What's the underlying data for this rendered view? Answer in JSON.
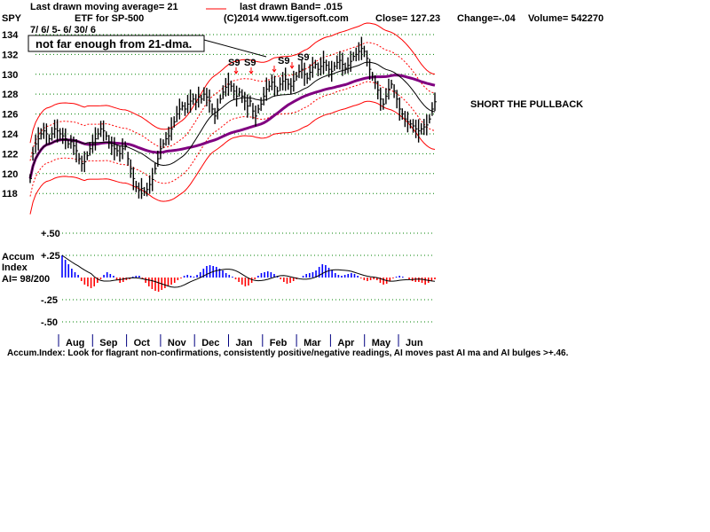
{
  "header": {
    "ticker": "SPY",
    "ma_label": "Last drawn moving average= 21",
    "band_label": "last drawn Band= .015",
    "subtitle": "ETF for SP-500",
    "copyright": "(C)2014 www.tigersoft.com",
    "close_label": "Close=  127.23",
    "change_label": "Change=-.04",
    "volume_label": "Volume=  542270",
    "date_range": "7/ 6/ 5-  6/ 30/ 6"
  },
  "annotations": {
    "callout": "not far enough from 21-dma.",
    "signal_1": "S9",
    "signal_2": "S9",
    "signal_3": "S9",
    "signal_4": "S9",
    "signal_5": "S9",
    "action": "SHORT THE PULLBACK"
  },
  "footer": {
    "text": "Accum.Index: Look for flagrant non-confirmations, consistently positive/negative readings, AI moves past AI ma and AI bulges >+.46."
  },
  "indicator": {
    "title_line1": "Accum",
    "title_line2": "Index",
    "ai_reading": "AI= 98/200"
  },
  "colors": {
    "price_bars": "#000000",
    "ma21": "#000000",
    "ma50": "#800080",
    "bands": "#ff0000",
    "grid": "#008000",
    "ai_positive": "#0000ff",
    "ai_negative": "#ff0000"
  },
  "chart_data": [
    {
      "type": "line",
      "title": "SPY",
      "y_ticks": [
        "134",
        "132",
        "130",
        "128",
        "126",
        "124",
        "122",
        "120",
        "118"
      ],
      "ylim": [
        116.5,
        134.8
      ],
      "grid": true,
      "months": [
        "Aug",
        "Sep",
        "Oct",
        "Nov",
        "Dec",
        "Jan",
        "Feb",
        "Mar",
        "Apr",
        "May",
        "Jun"
      ],
      "price_closes": [
        119.5,
        122,
        123,
        123.5,
        124,
        124.3,
        124,
        123.5,
        124,
        124.5,
        124.3,
        124,
        123.8,
        123.5,
        123,
        123.2,
        122.8,
        122.3,
        121.5,
        121,
        121.2,
        121.8,
        122.5,
        123,
        123.5,
        124,
        124.5,
        124.3,
        123.8,
        123.2,
        122.8,
        122.5,
        122.3,
        122,
        122.5,
        122.8,
        121.5,
        120.5,
        119.5,
        118.7,
        118.3,
        118.5,
        118.2,
        118.4,
        118.9,
        119.4,
        120.5,
        121.5,
        122.5,
        123,
        123.5,
        123.8,
        124.5,
        125.2,
        126,
        126.5,
        126.8,
        126.5,
        127,
        127.3,
        127.5,
        127.2,
        127.7,
        127.5,
        128,
        127.7,
        127.3,
        126.5,
        125.8,
        126.5,
        127.5,
        128.2,
        128.7,
        129,
        128.8,
        128.3,
        127.8,
        128.2,
        127.8,
        127.3,
        126.8,
        127.3,
        126.3,
        125.8,
        126.5,
        127,
        127.8,
        128.5,
        128.8,
        129.2,
        128.8,
        128.3,
        129,
        129.3,
        129.5,
        129,
        128.8,
        129.3,
        129.8,
        130.3,
        130.5,
        130,
        129.6,
        130.2,
        130.7,
        131,
        130.5,
        130.8,
        131.2,
        130.9,
        130.5,
        130.3,
        130.8,
        131.2,
        131.4,
        131,
        130.6,
        130.9,
        131.3,
        131.8,
        132,
        132.3,
        132.6,
        132.3,
        131.6,
        130.5,
        129.8,
        129.2,
        128.4,
        127.5,
        127,
        127.8,
        128.5,
        129,
        128.3,
        127.5,
        126.5,
        126,
        125.5,
        125.2,
        125,
        124.8,
        124.5,
        124.3,
        124.5,
        124.7,
        124.9,
        125.5,
        126.5,
        127.23
      ],
      "ma21_label": "21-dma",
      "band_pct": 0.015
    },
    {
      "type": "bar",
      "title": "Accum Index",
      "y_ticks": [
        "+.50",
        "+.25",
        "-.25",
        "-.50"
      ],
      "ylim": [
        -0.55,
        0.55
      ],
      "values": [
        0.25,
        0.2,
        0.15,
        0.1,
        0.06,
        0.03,
        -0.04,
        -0.08,
        -0.1,
        -0.12,
        -0.1,
        -0.06,
        -0.02,
        0.03,
        0.06,
        0.04,
        0.02,
        -0.03,
        -0.06,
        -0.05,
        -0.03,
        -0.02,
        0.01,
        0.02,
        0.02,
        -0.02,
        -0.06,
        -0.1,
        -0.13,
        -0.15,
        -0.16,
        -0.14,
        -0.12,
        -0.1,
        -0.08,
        -0.06,
        -0.03,
        -0.01,
        0.02,
        0.03,
        0.02,
        0.01,
        0.03,
        0.06,
        0.1,
        0.13,
        0.14,
        0.13,
        0.12,
        0.1,
        0.08,
        0.05,
        0.03,
        0.01,
        -0.02,
        -0.05,
        -0.08,
        -0.1,
        -0.09,
        -0.06,
        -0.02,
        0.02,
        0.05,
        0.06,
        0.07,
        0.06,
        0.04,
        0.01,
        -0.02,
        -0.05,
        -0.07,
        -0.06,
        -0.04,
        -0.02,
        0.0,
        0.02,
        0.04,
        0.05,
        0.06,
        0.08,
        0.12,
        0.15,
        0.14,
        0.11,
        0.08,
        0.05,
        0.03,
        0.02,
        0.03,
        0.04,
        0.05,
        0.04,
        0.02,
        -0.01,
        -0.03,
        -0.04,
        -0.03,
        -0.02,
        -0.03,
        -0.06,
        -0.08,
        -0.07,
        -0.04,
        -0.01,
        0.01,
        0.02,
        0.01,
        0.0,
        -0.02,
        -0.04,
        -0.05,
        -0.05,
        -0.06,
        -0.08,
        -0.06,
        -0.04,
        -0.02
      ]
    }
  ]
}
